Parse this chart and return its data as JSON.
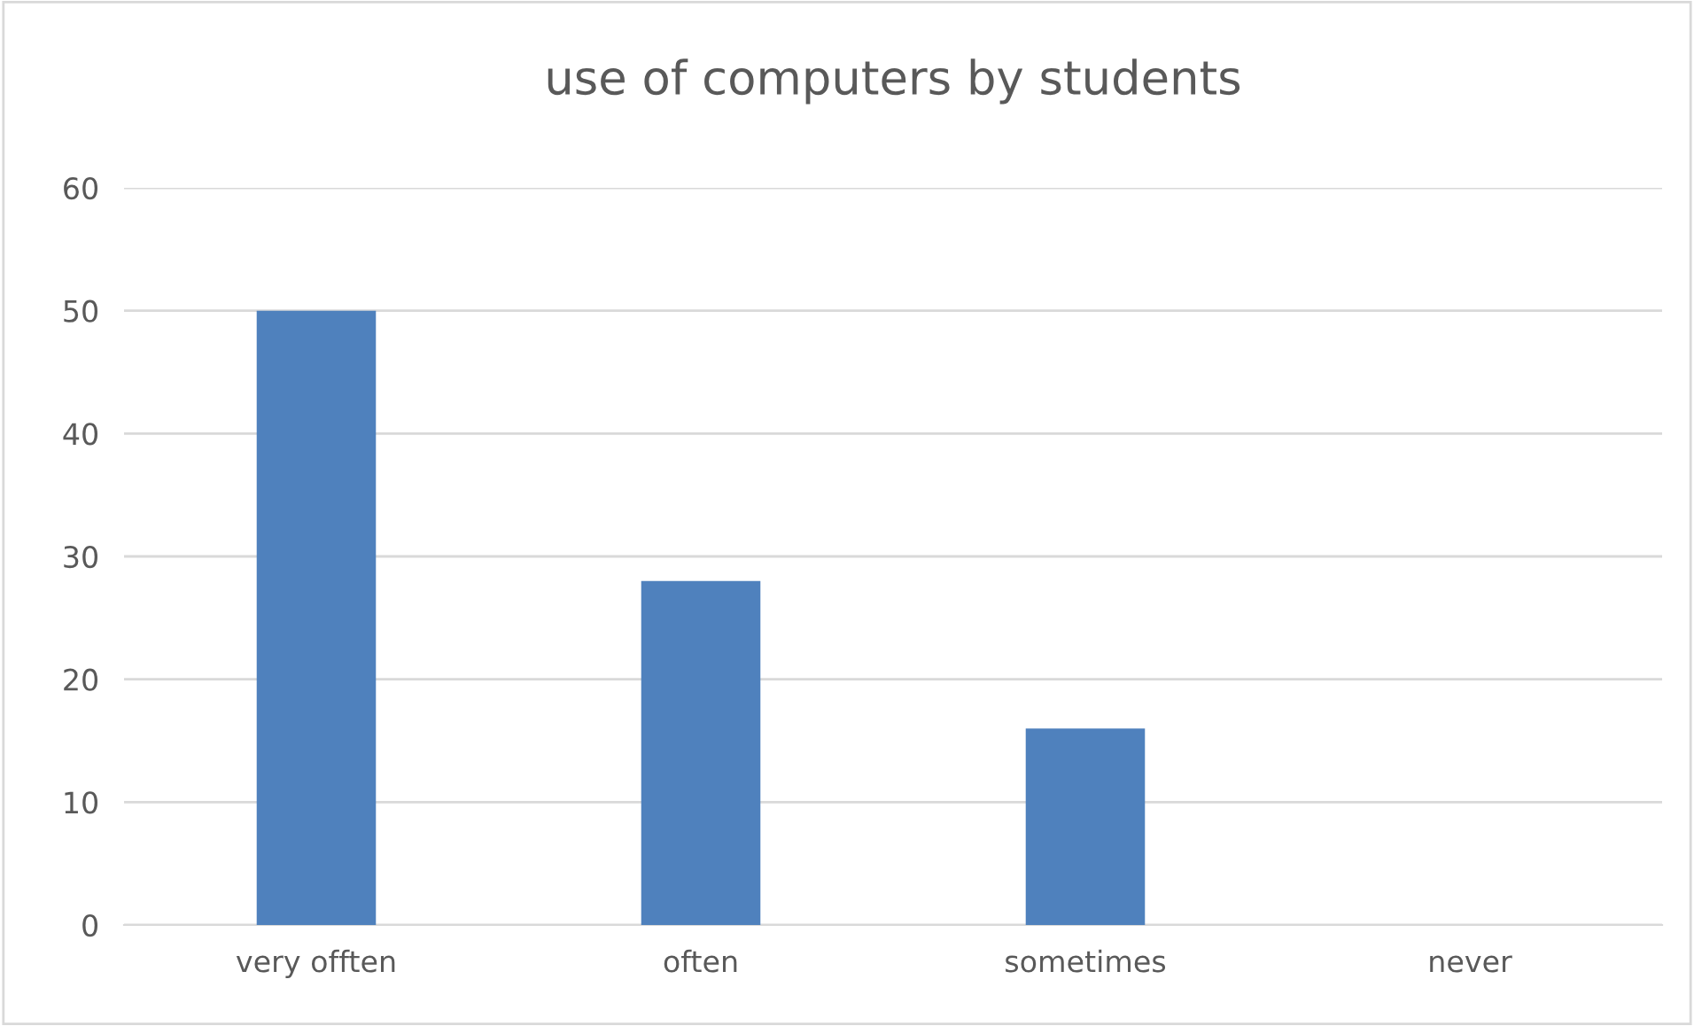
{
  "chart_data": {
    "type": "bar",
    "title": "use of computers by students",
    "categories": [
      "very offten",
      "often",
      "sometimes",
      "never"
    ],
    "values": [
      50,
      28,
      16,
      0
    ],
    "color": "#4f81bd",
    "ylim": [
      0,
      60
    ],
    "yticks": [
      0,
      10,
      20,
      30,
      40,
      50,
      60
    ],
    "grid": "y",
    "legend": false
  }
}
